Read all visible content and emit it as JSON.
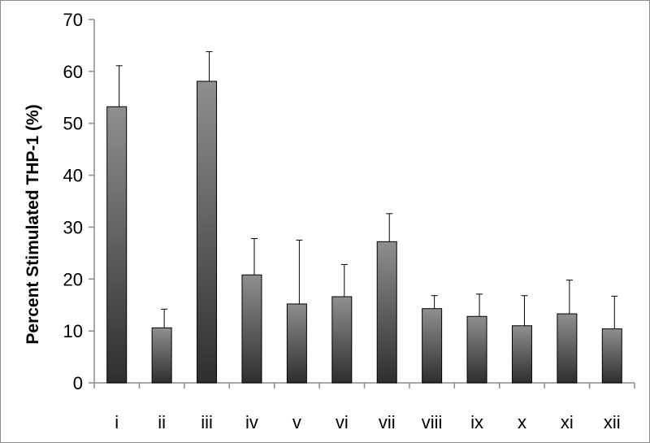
{
  "chart_data": {
    "type": "bar",
    "title": "",
    "xlabel": "",
    "ylabel": "Percent Stimulated THP-1 (%)",
    "ylim": [
      0,
      70
    ],
    "yticks": [
      0,
      10,
      20,
      30,
      40,
      50,
      60,
      70
    ],
    "grid": false,
    "categories": [
      "i",
      "ii",
      "iii",
      "iv",
      "v",
      "vi",
      "vii",
      "viii",
      "ix",
      "x",
      "xi",
      "xii"
    ],
    "values": [
      53.2,
      10.6,
      58.1,
      20.8,
      15.2,
      16.6,
      27.2,
      14.3,
      12.8,
      11.0,
      13.3,
      10.4
    ],
    "error_upper": [
      7.9,
      3.6,
      5.7,
      7.0,
      12.3,
      6.2,
      5.4,
      2.5,
      4.3,
      5.8,
      6.5,
      6.3
    ],
    "colors": {
      "bar_top": "#8f8f8f",
      "bar_bottom": "#2e2e2e",
      "bar_edge": "#000000",
      "axis": "#8c8c8c",
      "error_bar": "#000000"
    }
  }
}
